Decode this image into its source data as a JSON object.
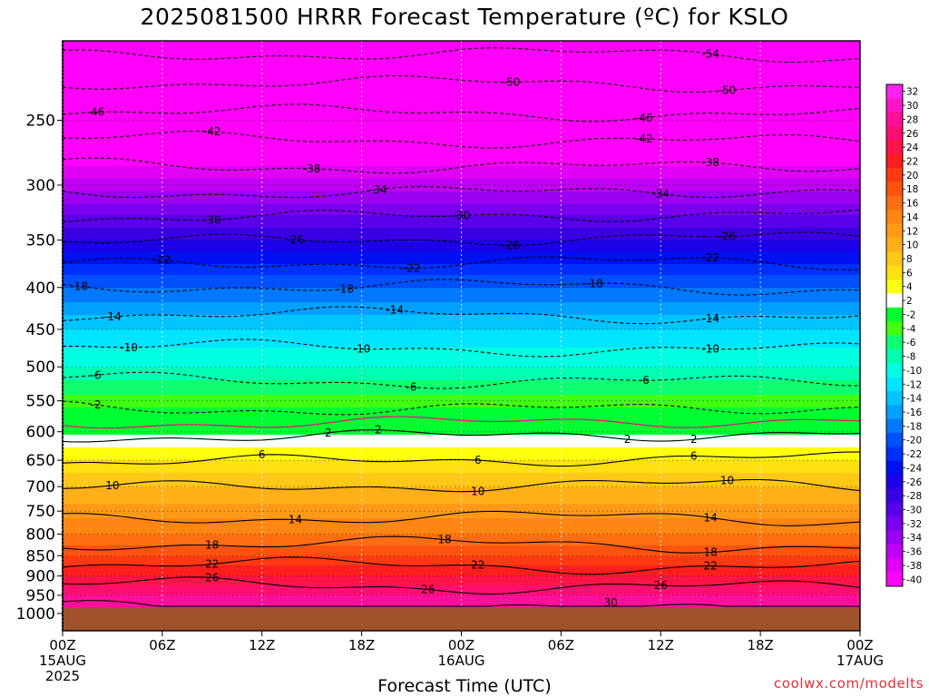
{
  "title": "2025081500 HRRR Forecast Temperature (ºC) for KSLO",
  "x_axis_title": "Forecast Time (UTC)",
  "credit": "coolwx.com/modelts",
  "colors": {
    "background": "#ffffff",
    "ground": "#a0522d",
    "freezing_line": "#e0187a",
    "credit_text": "#e0303a"
  },
  "chart_data": {
    "type": "heatmap",
    "title": "2025081500 HRRR Forecast Temperature (ºC) for KSLO",
    "xlabel": "Forecast Time (UTC)",
    "ylabel": "",
    "x_ticks": [
      {
        "hour": 0,
        "label": "00Z",
        "sub": [
          "15AUG",
          "2025"
        ]
      },
      {
        "hour": 6,
        "label": "06Z",
        "sub": []
      },
      {
        "hour": 12,
        "label": "12Z",
        "sub": []
      },
      {
        "hour": 18,
        "label": "18Z",
        "sub": []
      },
      {
        "hour": 24,
        "label": "00Z",
        "sub": [
          "16AUG"
        ]
      },
      {
        "hour": 30,
        "label": "06Z",
        "sub": []
      },
      {
        "hour": 36,
        "label": "12Z",
        "sub": []
      },
      {
        "hour": 42,
        "label": "18Z",
        "sub": []
      },
      {
        "hour": 48,
        "label": "00Z",
        "sub": [
          "17AUG"
        ]
      }
    ],
    "xlim_hours": [
      0,
      48
    ],
    "y_ticks": [
      250,
      300,
      350,
      400,
      450,
      500,
      550,
      600,
      650,
      700,
      750,
      800,
      850,
      900,
      950,
      1000
    ],
    "ylim_hPa": [
      200,
      1000
    ],
    "y_scale": "log",
    "surface_pressure_hPa": 985,
    "grid": true,
    "profile": {
      "pressure_hPa": [
        200,
        250,
        300,
        350,
        400,
        450,
        500,
        550,
        600,
        650,
        700,
        750,
        800,
        850,
        900,
        950,
        985
      ],
      "temperature_C": [
        -56,
        -45,
        -35,
        -26,
        -18,
        -12,
        -8,
        -3,
        1.5,
        6,
        10,
        13,
        16,
        20,
        24,
        28,
        30
      ]
    },
    "contours": [
      {
        "value": -54,
        "label": "-54",
        "label_hours": [
          39
        ]
      },
      {
        "value": -50,
        "label": "-50",
        "label_hours": [
          27,
          40
        ]
      },
      {
        "value": -46,
        "label": "-46",
        "label_hours": [
          2,
          35
        ]
      },
      {
        "value": -42,
        "label": "-42",
        "label_hours": [
          9,
          35
        ]
      },
      {
        "value": -38,
        "label": "-38",
        "label_hours": [
          15,
          39
        ]
      },
      {
        "value": -34,
        "label": "-34",
        "label_hours": [
          19,
          36
        ]
      },
      {
        "value": -30,
        "label": "-30",
        "label_hours": [
          9,
          24
        ]
      },
      {
        "value": -26,
        "label": "-26",
        "label_hours": [
          14,
          27,
          40
        ]
      },
      {
        "value": -22,
        "label": "-22",
        "label_hours": [
          6,
          21,
          39
        ]
      },
      {
        "value": -18,
        "label": "-18",
        "label_hours": [
          1,
          17,
          32
        ]
      },
      {
        "value": -14,
        "label": "-14",
        "label_hours": [
          3,
          20,
          39
        ]
      },
      {
        "value": -10,
        "label": "-10",
        "label_hours": [
          4,
          18,
          39
        ]
      },
      {
        "value": -6,
        "label": "-6",
        "label_hours": [
          2,
          21,
          35
        ]
      },
      {
        "value": -2,
        "label": "-2",
        "label_hours": [
          2
        ]
      },
      {
        "value": 2,
        "label": "2",
        "label_hours": [
          16,
          34,
          19,
          38
        ]
      },
      {
        "value": 6,
        "label": "6",
        "label_hours": [
          12,
          25,
          38
        ]
      },
      {
        "value": 10,
        "label": "10",
        "label_hours": [
          3,
          25,
          40
        ]
      },
      {
        "value": 14,
        "label": "14",
        "label_hours": [
          14,
          39
        ]
      },
      {
        "value": 18,
        "label": "18",
        "label_hours": [
          9,
          23,
          39
        ]
      },
      {
        "value": 22,
        "label": "22",
        "label_hours": [
          9,
          25,
          39
        ]
      },
      {
        "value": 26,
        "label": "26",
        "label_hours": [
          9,
          22,
          36
        ]
      },
      {
        "value": 30,
        "label": "30",
        "label_hours": [
          33
        ]
      }
    ],
    "freezing_level_line": {
      "value": 0,
      "color": "#e0187a"
    },
    "colorbar": {
      "labels": [
        "32",
        "30",
        "28",
        "26",
        "24",
        "22",
        "20",
        "18",
        "16",
        "14",
        "12",
        "10",
        "8",
        "6",
        "4",
        "2",
        "-2",
        "-4",
        "-6",
        "-8",
        "-10",
        "-12",
        "-14",
        "-16",
        "-18",
        "-20",
        "-22",
        "-24",
        "-26",
        "-28",
        "-30",
        "-32",
        "-34",
        "-36",
        "-38",
        "-40"
      ],
      "colors": [
        "#ff22ee",
        "#ff14c8",
        "#ff109a",
        "#ff1070",
        "#ff1448",
        "#ff1e1e",
        "#ff3a12",
        "#ff5410",
        "#ff6e12",
        "#ff8612",
        "#ff9a18",
        "#ffb018",
        "#ffc818",
        "#ffe010",
        "#ffff10",
        "#ffffff",
        "#00ff30",
        "#40ff10",
        "#10ff70",
        "#00ffb0",
        "#00ffe0",
        "#00e4ff",
        "#00c4ff",
        "#00a0ff",
        "#0078ff",
        "#0050ff",
        "#0030ff",
        "#0010f0",
        "#1c00e8",
        "#3a00e4",
        "#5800e8",
        "#7a00ee",
        "#9c00f0",
        "#c000f4",
        "#e000f6",
        "#ff00f8"
      ]
    }
  }
}
